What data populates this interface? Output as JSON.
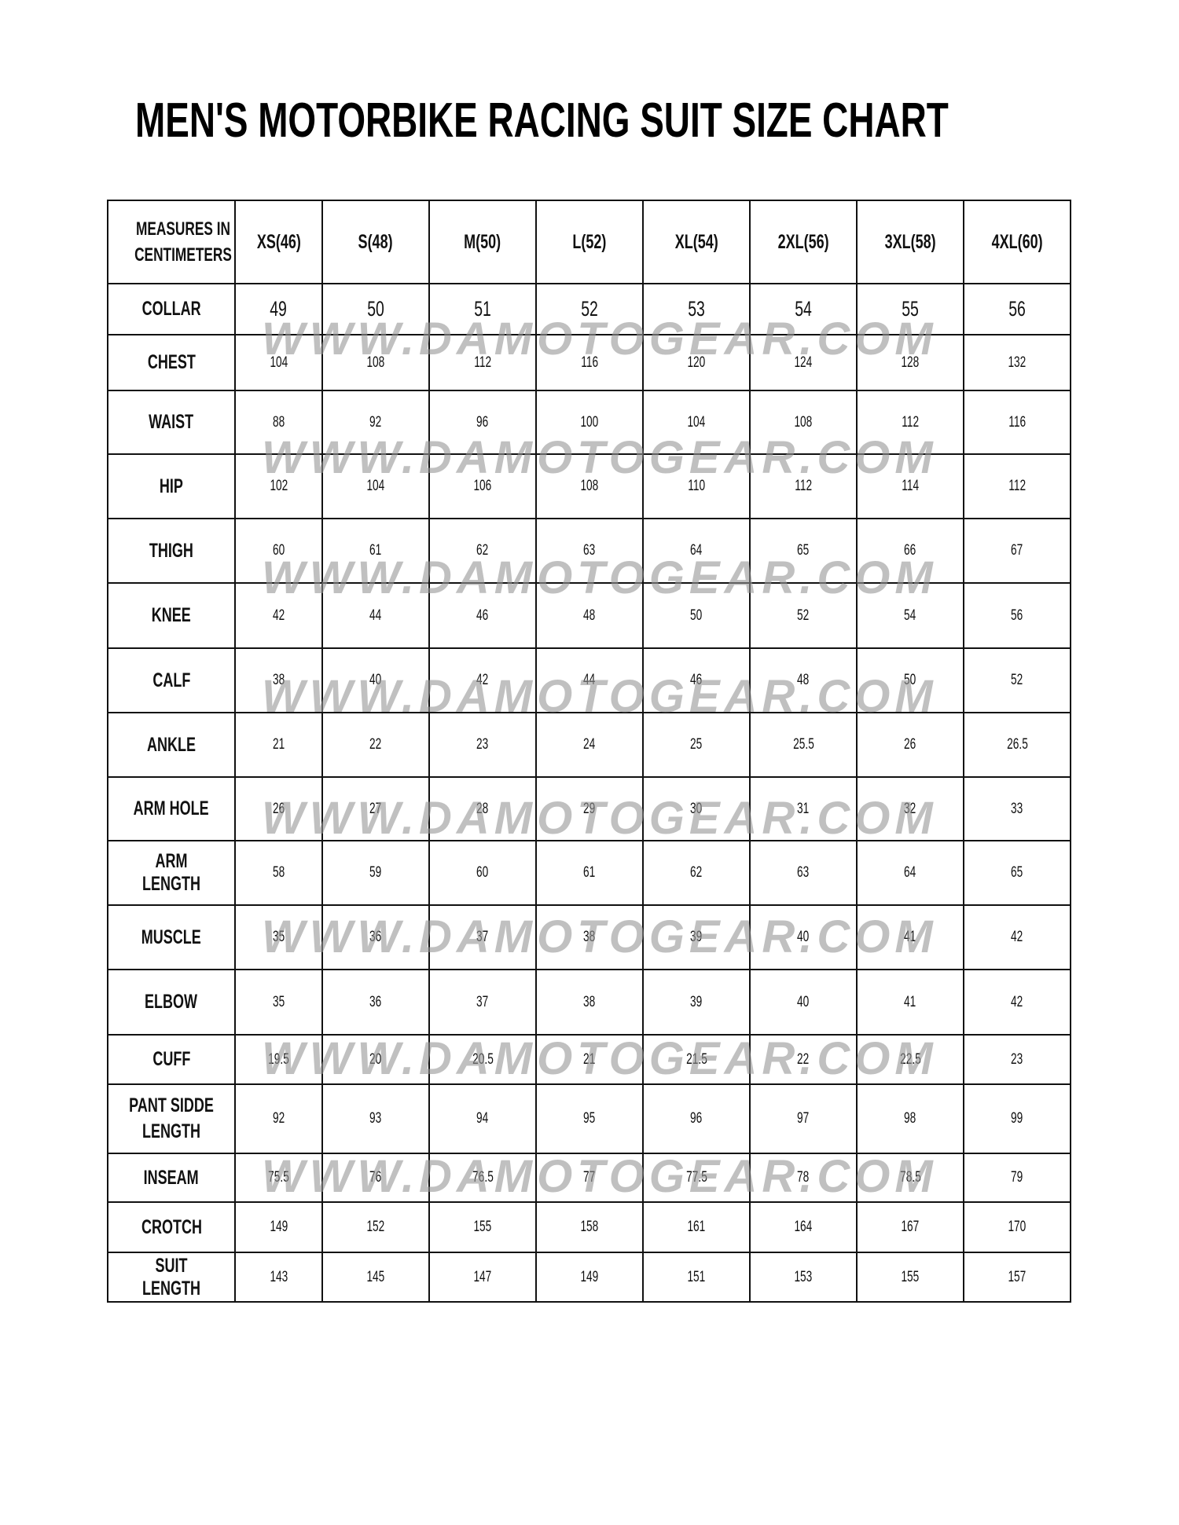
{
  "title": "MEN'S MOTORBIKE RACING SUIT SIZE CHART",
  "watermark": "WWW.DAMOTOGEAR.COM",
  "accent_color": "#d42020",
  "table": {
    "corner_label": "MEASURES IN CENTIMETERS",
    "columns": [
      "XS(46)",
      "S(48)",
      "M(50)",
      "L(52)",
      "XL(54)",
      "2XL(56)",
      "3XL(58)",
      "4XL(60)"
    ],
    "rows": [
      {
        "label": "COLLAR",
        "values": [
          "49",
          "50",
          "51",
          "52",
          "53",
          "54",
          "55",
          "56"
        ]
      },
      {
        "label": "CHEST",
        "values": [
          "104",
          "108",
          "112",
          "116",
          "120",
          "124",
          "128",
          "132"
        ]
      },
      {
        "label": "WAIST",
        "values": [
          "88",
          "92",
          "96",
          "100",
          "104",
          "108",
          "112",
          "116"
        ]
      },
      {
        "label": "HIP",
        "values": [
          "102",
          "104",
          "106",
          "108",
          "110",
          "112",
          "114",
          "112"
        ]
      },
      {
        "label": "THIGH",
        "values": [
          "60",
          "61",
          "62",
          "63",
          "64",
          "65",
          "66",
          "67"
        ]
      },
      {
        "label": "KNEE",
        "values": [
          "42",
          "44",
          "46",
          "48",
          "50",
          "52",
          "54",
          "56"
        ]
      },
      {
        "label": "CALF",
        "values": [
          "38",
          "40",
          "42",
          "44",
          "46",
          "48",
          "50",
          "52"
        ]
      },
      {
        "label": "ANKLE",
        "values": [
          "21",
          "22",
          "23",
          "24",
          "25",
          "25.5",
          "26",
          "26.5"
        ]
      },
      {
        "label": "ARM HOLE",
        "values": [
          "26",
          "27",
          "28",
          "29",
          "30",
          "31",
          "32",
          "33"
        ]
      },
      {
        "label": "ARM LENGTH",
        "values": [
          "58",
          "59",
          "60",
          "61",
          "62",
          "63",
          "64",
          "65"
        ]
      },
      {
        "label": "MUSCLE",
        "values": [
          "35",
          "36",
          "37",
          "38",
          "39",
          "40",
          "41",
          "42"
        ]
      },
      {
        "label": "ELBOW",
        "values": [
          "35",
          "36",
          "37",
          "38",
          "39",
          "40",
          "41",
          "42"
        ]
      },
      {
        "label": "CUFF",
        "values": [
          "19.5",
          "20",
          "20.5",
          "21",
          "21.5",
          "22",
          "22.5",
          "23"
        ]
      },
      {
        "label": "PANT SIDDE LENGTH",
        "values": [
          "92",
          "93",
          "94",
          "95",
          "96",
          "97",
          "98",
          "99"
        ]
      },
      {
        "label": "INSEAM",
        "values": [
          "75.5",
          "76",
          "76.5",
          "77",
          "77.5",
          "78",
          "78.5",
          "79"
        ]
      },
      {
        "label": "CROTCH",
        "values": [
          "149",
          "152",
          "155",
          "158",
          "161",
          "164",
          "167",
          "170"
        ]
      },
      {
        "label": "SUIT LENGTH",
        "values": [
          "143",
          "145",
          "147",
          "149",
          "151",
          "153",
          "155",
          "157"
        ]
      }
    ]
  }
}
